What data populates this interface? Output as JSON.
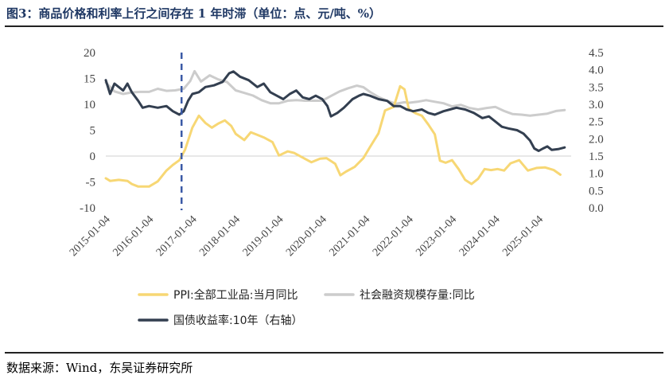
{
  "title": "图3：商品价格和利率上行之间存在 1 年时滞（单位：点、元/吨、%）",
  "source": "数据来源：Wind，东吴证券研究所",
  "chart_data": {
    "type": "line",
    "title": "图3：商品价格和利率上行之间存在 1 年时滞（单位：点、元/吨、%）",
    "x_ticks": [
      "2015-01-04",
      "2016-01-04",
      "2017-01-04",
      "2018-01-04",
      "2019-01-04",
      "2020-01-04",
      "2021-01-04",
      "2022-01-04",
      "2023-01-04",
      "2024-01-04",
      "2025-01-04"
    ],
    "left_axis": {
      "range": [
        -10,
        20
      ],
      "ticks": [
        "20",
        "15",
        "10",
        "5",
        "0",
        "-5",
        "-10"
      ]
    },
    "right_axis": {
      "range": [
        0.0,
        4.5
      ],
      "ticks": [
        "4.5",
        "4.0",
        "3.5",
        "3.0",
        "2.5",
        "2.0",
        "1.5",
        "1.0",
        "0.5",
        "0.0"
      ]
    },
    "vline": {
      "x": 2016.75,
      "style": "dashed",
      "color": "#3b5aa6"
    },
    "legend_placement": "bottom",
    "grid": false,
    "series": [
      {
        "name": "PPI:全部工业品:当月同比",
        "axis": "left",
        "color": "#f7d774",
        "points": [
          [
            2015.0,
            -4.3
          ],
          [
            2015.1,
            -4.8
          ],
          [
            2015.3,
            -4.6
          ],
          [
            2015.5,
            -4.8
          ],
          [
            2015.6,
            -5.4
          ],
          [
            2015.75,
            -5.9
          ],
          [
            2016.0,
            -5.9
          ],
          [
            2016.2,
            -4.9
          ],
          [
            2016.4,
            -2.8
          ],
          [
            2016.55,
            -1.7
          ],
          [
            2016.7,
            -0.8
          ],
          [
            2016.83,
            1.2
          ],
          [
            2017.0,
            5.5
          ],
          [
            2017.15,
            7.8
          ],
          [
            2017.3,
            6.4
          ],
          [
            2017.45,
            5.5
          ],
          [
            2017.6,
            6.3
          ],
          [
            2017.75,
            6.9
          ],
          [
            2017.9,
            5.8
          ],
          [
            2018.0,
            4.3
          ],
          [
            2018.2,
            3.1
          ],
          [
            2018.35,
            4.6
          ],
          [
            2018.5,
            4.1
          ],
          [
            2018.65,
            3.6
          ],
          [
            2018.85,
            2.7
          ],
          [
            2019.0,
            0.1
          ],
          [
            2019.2,
            0.9
          ],
          [
            2019.35,
            0.6
          ],
          [
            2019.55,
            -0.3
          ],
          [
            2019.75,
            -1.2
          ],
          [
            2019.95,
            -0.5
          ],
          [
            2020.1,
            -0.4
          ],
          [
            2020.3,
            -1.5
          ],
          [
            2020.42,
            -3.7
          ],
          [
            2020.55,
            -3.0
          ],
          [
            2020.75,
            -2.1
          ],
          [
            2020.95,
            -0.4
          ],
          [
            2021.1,
            1.7
          ],
          [
            2021.3,
            4.4
          ],
          [
            2021.45,
            8.8
          ],
          [
            2021.65,
            9.5
          ],
          [
            2021.8,
            13.5
          ],
          [
            2021.9,
            12.9
          ],
          [
            2022.0,
            9.1
          ],
          [
            2022.15,
            8.3
          ],
          [
            2022.3,
            7.8
          ],
          [
            2022.45,
            6.1
          ],
          [
            2022.6,
            4.2
          ],
          [
            2022.72,
            -0.9
          ],
          [
            2022.85,
            -1.3
          ],
          [
            2023.0,
            -0.8
          ],
          [
            2023.15,
            -2.5
          ],
          [
            2023.3,
            -4.6
          ],
          [
            2023.45,
            -5.4
          ],
          [
            2023.6,
            -4.4
          ],
          [
            2023.75,
            -2.5
          ],
          [
            2023.9,
            -2.7
          ],
          [
            2024.05,
            -2.5
          ],
          [
            2024.2,
            -2.8
          ],
          [
            2024.35,
            -1.4
          ],
          [
            2024.55,
            -0.8
          ],
          [
            2024.75,
            -2.8
          ],
          [
            2024.95,
            -2.3
          ],
          [
            2025.15,
            -2.2
          ],
          [
            2025.35,
            -2.7
          ],
          [
            2025.5,
            -3.6
          ]
        ]
      },
      {
        "name": "社会融资规模存量:同比",
        "axis": "left",
        "color": "#cccccc",
        "points": [
          [
            2015.0,
            14.2
          ],
          [
            2015.2,
            12.5
          ],
          [
            2015.4,
            12.0
          ],
          [
            2015.6,
            12.3
          ],
          [
            2015.8,
            12.4
          ],
          [
            2016.0,
            12.4
          ],
          [
            2016.2,
            13.0
          ],
          [
            2016.4,
            12.6
          ],
          [
            2016.6,
            12.7
          ],
          [
            2016.8,
            13.0
          ],
          [
            2016.95,
            14.5
          ],
          [
            2017.05,
            16.4
          ],
          [
            2017.2,
            14.4
          ],
          [
            2017.4,
            15.6
          ],
          [
            2017.6,
            14.8
          ],
          [
            2017.8,
            14.3
          ],
          [
            2018.0,
            12.7
          ],
          [
            2018.2,
            12.2
          ],
          [
            2018.4,
            11.7
          ],
          [
            2018.6,
            10.8
          ],
          [
            2018.8,
            10.2
          ],
          [
            2019.0,
            10.2
          ],
          [
            2019.2,
            10.7
          ],
          [
            2019.4,
            10.8
          ],
          [
            2019.6,
            10.7
          ],
          [
            2019.8,
            10.7
          ],
          [
            2020.0,
            10.7
          ],
          [
            2020.2,
            11.6
          ],
          [
            2020.4,
            12.5
          ],
          [
            2020.6,
            13.1
          ],
          [
            2020.8,
            13.6
          ],
          [
            2020.95,
            13.3
          ],
          [
            2021.1,
            12.4
          ],
          [
            2021.3,
            11.4
          ],
          [
            2021.5,
            10.7
          ],
          [
            2021.7,
            10.1
          ],
          [
            2021.9,
            10.4
          ],
          [
            2022.0,
            10.3
          ],
          [
            2022.2,
            10.5
          ],
          [
            2022.4,
            10.8
          ],
          [
            2022.6,
            10.5
          ],
          [
            2022.8,
            10.2
          ],
          [
            2023.0,
            9.6
          ],
          [
            2023.2,
            9.9
          ],
          [
            2023.4,
            9.3
          ],
          [
            2023.6,
            9.0
          ],
          [
            2023.8,
            9.3
          ],
          [
            2024.0,
            9.5
          ],
          [
            2024.2,
            8.7
          ],
          [
            2024.4,
            8.1
          ],
          [
            2024.6,
            8.0
          ],
          [
            2024.8,
            7.8
          ],
          [
            2025.0,
            8.0
          ],
          [
            2025.2,
            8.2
          ],
          [
            2025.4,
            8.7
          ],
          [
            2025.6,
            8.9
          ]
        ]
      },
      {
        "name": "国债收益率:10年（右轴）",
        "axis": "right",
        "color": "#333f50",
        "points": [
          [
            2015.0,
            3.7
          ],
          [
            2015.1,
            3.3
          ],
          [
            2015.2,
            3.6
          ],
          [
            2015.3,
            3.5
          ],
          [
            2015.4,
            3.4
          ],
          [
            2015.5,
            3.6
          ],
          [
            2015.6,
            3.35
          ],
          [
            2015.75,
            3.1
          ],
          [
            2015.85,
            2.9
          ],
          [
            2016.0,
            2.95
          ],
          [
            2016.2,
            2.9
          ],
          [
            2016.4,
            2.95
          ],
          [
            2016.55,
            2.8
          ],
          [
            2016.7,
            2.7
          ],
          [
            2016.8,
            2.8
          ],
          [
            2016.9,
            3.1
          ],
          [
            2017.0,
            3.3
          ],
          [
            2017.15,
            3.35
          ],
          [
            2017.3,
            3.5
          ],
          [
            2017.5,
            3.55
          ],
          [
            2017.7,
            3.65
          ],
          [
            2017.85,
            3.9
          ],
          [
            2017.95,
            3.95
          ],
          [
            2018.1,
            3.8
          ],
          [
            2018.3,
            3.7
          ],
          [
            2018.5,
            3.5
          ],
          [
            2018.65,
            3.6
          ],
          [
            2018.8,
            3.35
          ],
          [
            2018.95,
            3.25
          ],
          [
            2019.1,
            3.15
          ],
          [
            2019.25,
            3.3
          ],
          [
            2019.4,
            3.4
          ],
          [
            2019.55,
            3.2
          ],
          [
            2019.7,
            3.15
          ],
          [
            2019.85,
            3.25
          ],
          [
            2020.0,
            3.15
          ],
          [
            2020.12,
            2.95
          ],
          [
            2020.2,
            2.65
          ],
          [
            2020.35,
            2.75
          ],
          [
            2020.5,
            2.9
          ],
          [
            2020.7,
            3.15
          ],
          [
            2020.85,
            3.25
          ],
          [
            2020.95,
            3.3
          ],
          [
            2021.1,
            3.25
          ],
          [
            2021.3,
            3.15
          ],
          [
            2021.5,
            3.1
          ],
          [
            2021.65,
            2.95
          ],
          [
            2021.8,
            2.95
          ],
          [
            2021.95,
            2.85
          ],
          [
            2022.1,
            2.8
          ],
          [
            2022.3,
            2.85
          ],
          [
            2022.45,
            2.75
          ],
          [
            2022.6,
            2.7
          ],
          [
            2022.8,
            2.8
          ],
          [
            2022.95,
            2.85
          ],
          [
            2023.1,
            2.9
          ],
          [
            2023.3,
            2.85
          ],
          [
            2023.5,
            2.75
          ],
          [
            2023.7,
            2.6
          ],
          [
            2023.85,
            2.65
          ],
          [
            2024.0,
            2.5
          ],
          [
            2024.15,
            2.35
          ],
          [
            2024.3,
            2.3
          ],
          [
            2024.5,
            2.25
          ],
          [
            2024.65,
            2.15
          ],
          [
            2024.8,
            1.95
          ],
          [
            2024.9,
            1.72
          ],
          [
            2025.0,
            1.65
          ],
          [
            2025.1,
            1.72
          ],
          [
            2025.2,
            1.78
          ],
          [
            2025.3,
            1.68
          ],
          [
            2025.45,
            1.7
          ],
          [
            2025.6,
            1.75
          ]
        ]
      }
    ]
  }
}
